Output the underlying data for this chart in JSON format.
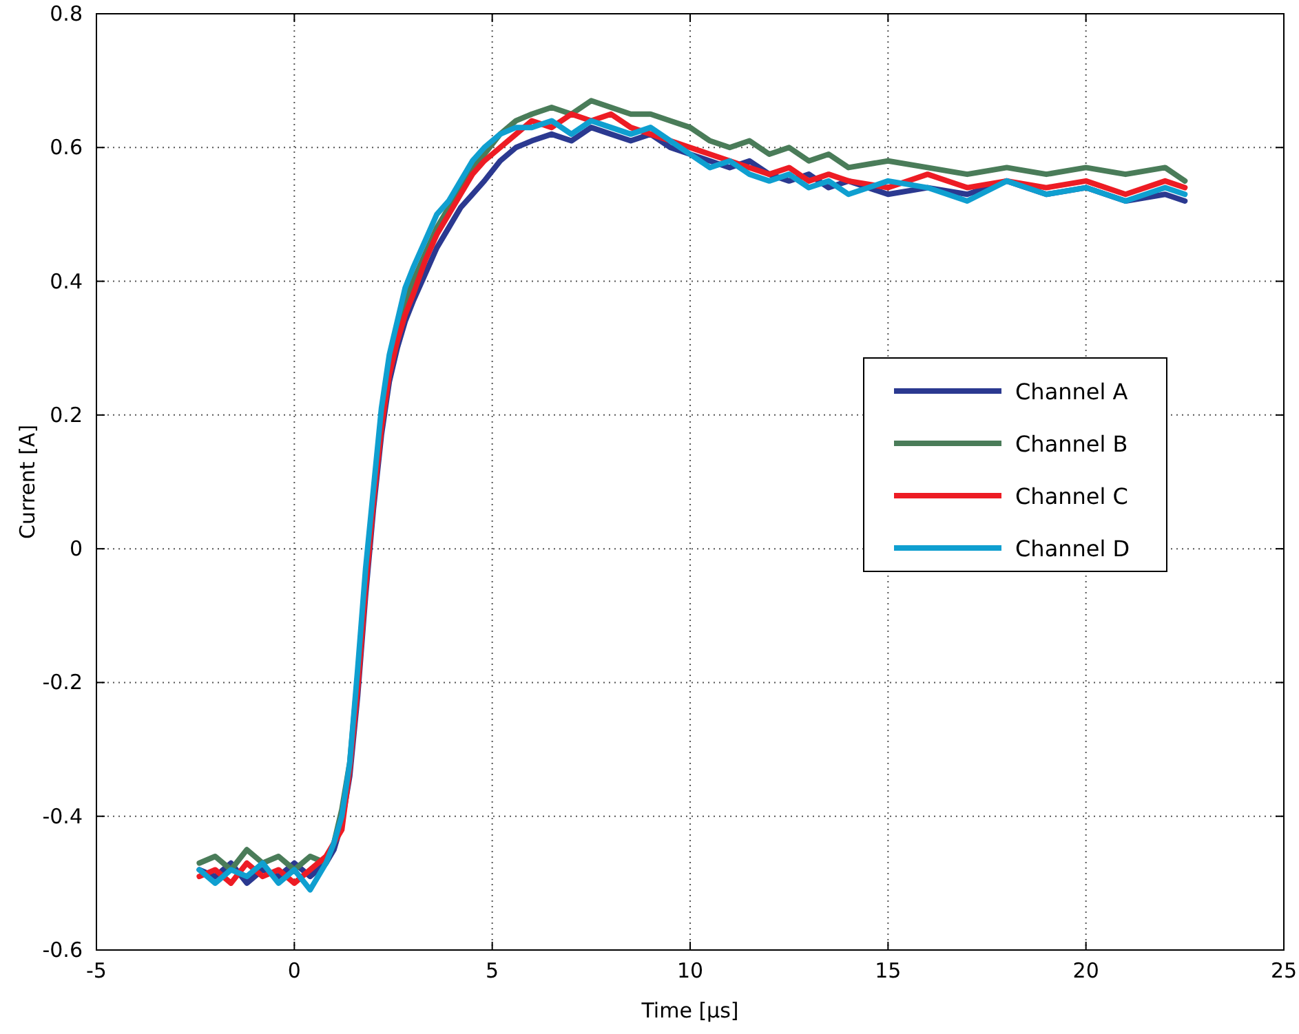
{
  "chart_data": {
    "type": "line",
    "xlabel": "Time [μs]",
    "ylabel": "Current [A]",
    "x": [
      -2.4,
      -2,
      -1.6,
      -1.2,
      -0.8,
      -0.4,
      0,
      0.4,
      0.8,
      1.0,
      1.2,
      1.4,
      1.6,
      1.8,
      2.0,
      2.2,
      2.4,
      2.6,
      2.8,
      3.0,
      3.3,
      3.6,
      3.9,
      4.2,
      4.5,
      4.8,
      5.2,
      5.6,
      6,
      6.5,
      7,
      7.5,
      8,
      8.5,
      9,
      9.5,
      10,
      10.5,
      11,
      11.5,
      12,
      12.5,
      13,
      13.5,
      14,
      15,
      16,
      17,
      18,
      19,
      20,
      21,
      22,
      22.5
    ],
    "series": [
      {
        "name": "Channel A",
        "color": "#2b3990",
        "values": [
          -0.48,
          -0.49,
          -0.47,
          -0.5,
          -0.48,
          -0.49,
          -0.47,
          -0.49,
          -0.47,
          -0.45,
          -0.41,
          -0.34,
          -0.22,
          -0.07,
          0.06,
          0.17,
          0.25,
          0.3,
          0.34,
          0.37,
          0.41,
          0.45,
          0.48,
          0.51,
          0.53,
          0.55,
          0.58,
          0.6,
          0.61,
          0.62,
          0.61,
          0.63,
          0.62,
          0.61,
          0.62,
          0.6,
          0.59,
          0.58,
          0.57,
          0.58,
          0.56,
          0.55,
          0.56,
          0.54,
          0.55,
          0.53,
          0.54,
          0.53,
          0.55,
          0.53,
          0.54,
          0.52,
          0.53,
          0.52
        ]
      },
      {
        "name": "Channel B",
        "color": "#4a7c59",
        "values": [
          -0.47,
          -0.46,
          -0.48,
          -0.45,
          -0.47,
          -0.46,
          -0.48,
          -0.46,
          -0.47,
          -0.44,
          -0.39,
          -0.32,
          -0.19,
          -0.04,
          0.08,
          0.2,
          0.28,
          0.33,
          0.37,
          0.4,
          0.44,
          0.48,
          0.51,
          0.54,
          0.57,
          0.59,
          0.62,
          0.64,
          0.65,
          0.66,
          0.65,
          0.67,
          0.66,
          0.65,
          0.65,
          0.64,
          0.63,
          0.61,
          0.6,
          0.61,
          0.59,
          0.6,
          0.58,
          0.59,
          0.57,
          0.58,
          0.57,
          0.56,
          0.57,
          0.56,
          0.57,
          0.56,
          0.57,
          0.55
        ]
      },
      {
        "name": "Channel C",
        "color": "#ed1c24",
        "values": [
          -0.49,
          -0.48,
          -0.5,
          -0.47,
          -0.49,
          -0.48,
          -0.5,
          -0.48,
          -0.46,
          -0.44,
          -0.42,
          -0.33,
          -0.21,
          -0.06,
          0.07,
          0.18,
          0.26,
          0.31,
          0.35,
          0.38,
          0.43,
          0.47,
          0.5,
          0.53,
          0.56,
          0.58,
          0.6,
          0.62,
          0.64,
          0.63,
          0.65,
          0.64,
          0.65,
          0.63,
          0.62,
          0.61,
          0.6,
          0.59,
          0.58,
          0.57,
          0.56,
          0.57,
          0.55,
          0.56,
          0.55,
          0.54,
          0.56,
          0.54,
          0.55,
          0.54,
          0.55,
          0.53,
          0.55,
          0.54
        ]
      },
      {
        "name": "Channel D",
        "color": "#0f9fd0",
        "values": [
          -0.48,
          -0.5,
          -0.48,
          -0.49,
          -0.47,
          -0.5,
          -0.48,
          -0.51,
          -0.47,
          -0.44,
          -0.4,
          -0.32,
          -0.18,
          -0.03,
          0.09,
          0.21,
          0.29,
          0.34,
          0.39,
          0.42,
          0.46,
          0.5,
          0.52,
          0.55,
          0.58,
          0.6,
          0.62,
          0.63,
          0.63,
          0.64,
          0.62,
          0.64,
          0.63,
          0.62,
          0.63,
          0.61,
          0.59,
          0.57,
          0.58,
          0.56,
          0.55,
          0.56,
          0.54,
          0.55,
          0.53,
          0.55,
          0.54,
          0.52,
          0.55,
          0.53,
          0.54,
          0.52,
          0.54,
          0.53
        ]
      }
    ],
    "xlim": [
      -5,
      25
    ],
    "xticks": [
      -5,
      0,
      5,
      10,
      15,
      20,
      25
    ],
    "ylim": [
      -0.6,
      0.8
    ],
    "yticks": [
      -0.6,
      -0.4,
      -0.2,
      0,
      0.2,
      0.4,
      0.6,
      0.8
    ],
    "grid": true,
    "legend": "right",
    "line_style": "solid"
  }
}
